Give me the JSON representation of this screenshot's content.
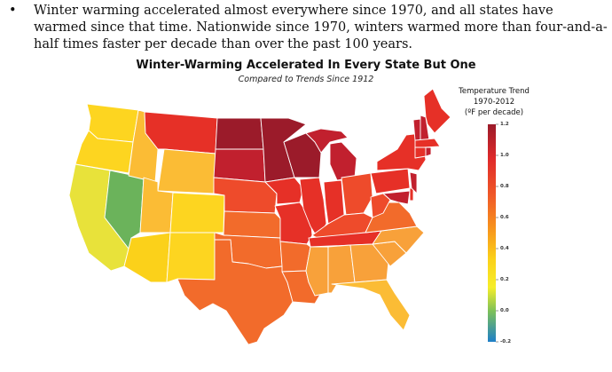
{
  "bullet": {
    "marker": "•",
    "text": "Winter warming accelerated almost everywhere since 1970, and all states have warmed since that time. Nationwide since 1970, winters warmed more than four-and-a-half times faster per decade than over the past 100 years."
  },
  "figure": {
    "title": "Winter-Warming Accelerated In Every State But One",
    "subtitle": "Compared to Trends Since 1912"
  },
  "legend": {
    "title_line1": "Temperature Trend",
    "title_line2": "1970-2012",
    "title_line3": "(ºF per decade)",
    "ticks": [
      "1.2",
      "1.0",
      "0.8",
      "0.6",
      "0.4",
      "0.2",
      "0.0",
      "-0.2"
    ],
    "colors": [
      "#9b1b2a",
      "#e02a2a",
      "#f05a28",
      "#f7941d",
      "#fbd11a",
      "#f6ee2a",
      "#7cc05a",
      "#1e7fc8"
    ]
  },
  "state_colors": {
    "darkest_red": "#9b1b2a",
    "dark_red": "#c1202e",
    "red": "#e63027",
    "red_orange": "#ee4b2b",
    "orange": "#f26b2b",
    "light_orange": "#f8a13a",
    "yellow_orange": "#fbbc35",
    "yellow": "#fdd520",
    "light_yellow": "#e8e23a",
    "green": "#6bb35b"
  }
}
